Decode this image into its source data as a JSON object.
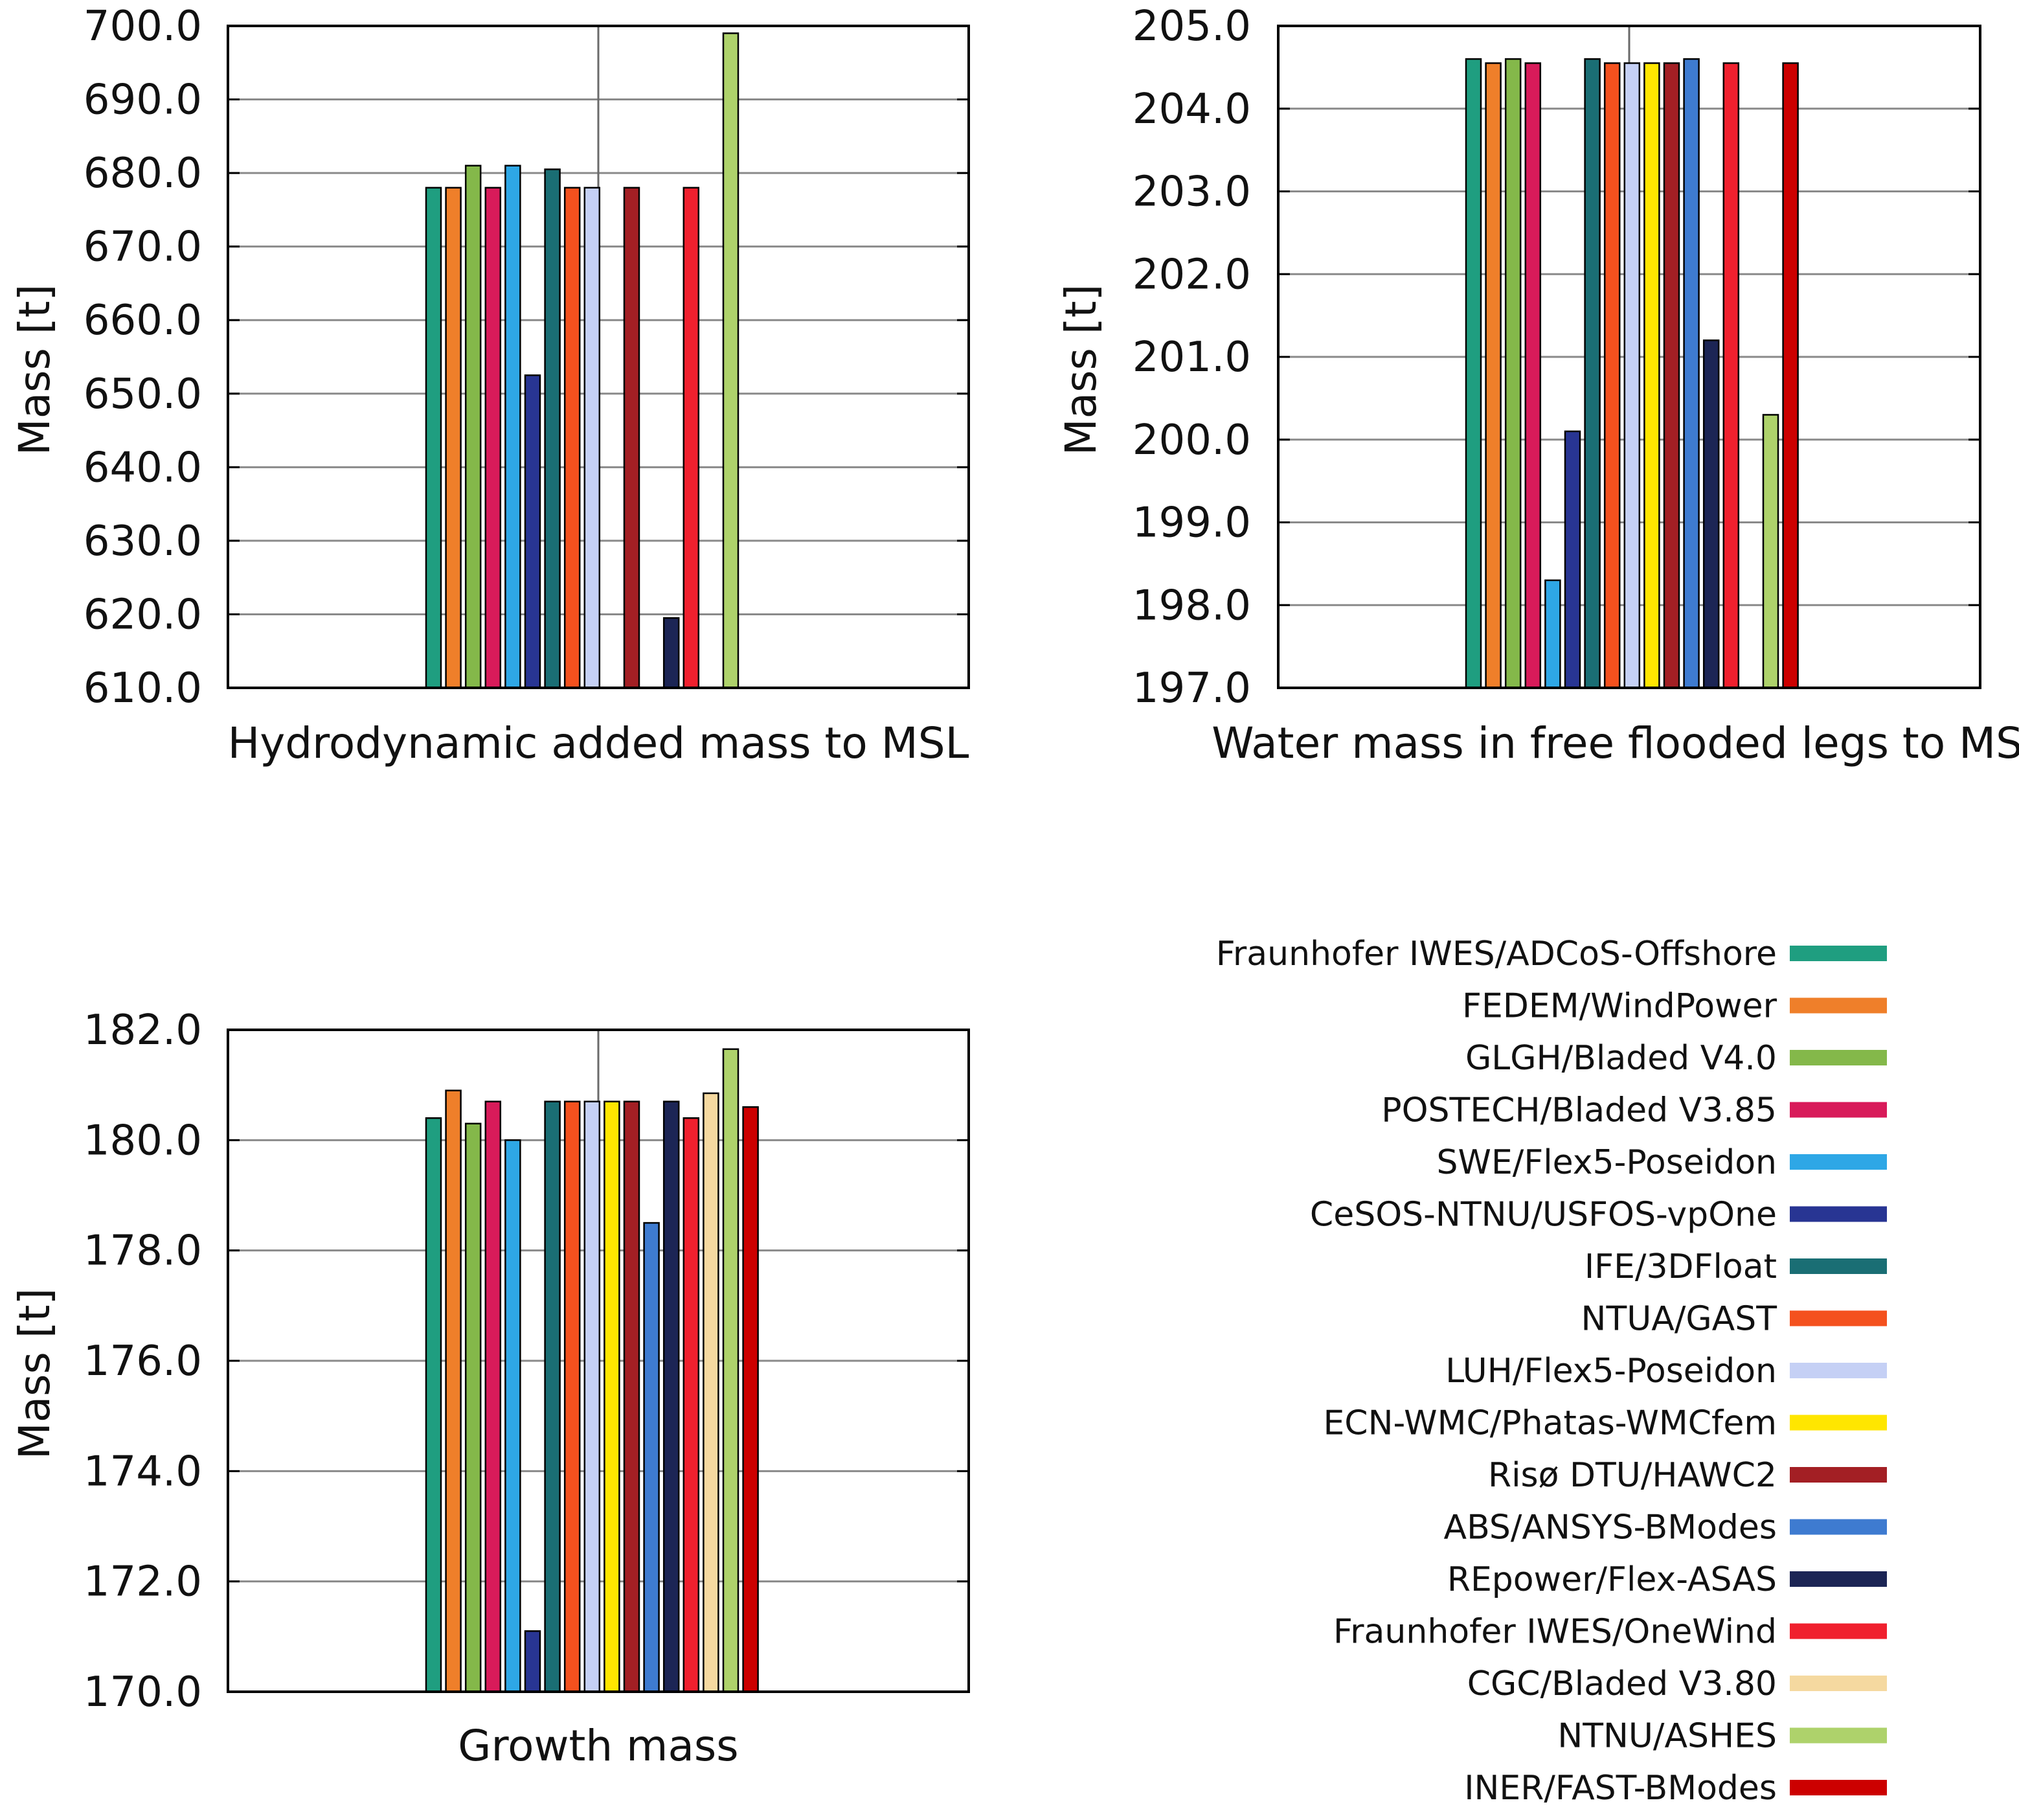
{
  "legend": {
    "entries": [
      {
        "name": "Fraunhofer IWES/ADCoS-Offshore",
        "color": "#1f9e80"
      },
      {
        "name": "FEDEM/WindPower",
        "color": "#ef7f2a"
      },
      {
        "name": "GLGH/Bladed V4.0",
        "color": "#84b84a"
      },
      {
        "name": "POSTECH/Bladed V3.85",
        "color": "#d81b5a"
      },
      {
        "name": "SWE/Flex5-Poseidon",
        "color": "#2ea7e6"
      },
      {
        "name": "CeSOS-NTNU/USFOS-vpOne",
        "color": "#283593"
      },
      {
        "name": "IFE/3DFloat",
        "color": "#1a6e74"
      },
      {
        "name": "NTUA/GAST",
        "color": "#f4511e"
      },
      {
        "name": "LUH/Flex5-Poseidon",
        "color": "#c5d0f5"
      },
      {
        "name": "ECN-WMC/Phatas-WMCfem",
        "color": "#ffe600"
      },
      {
        "name": "Risø DTU/HAWC2",
        "color": "#a31f24"
      },
      {
        "name": "ABS/ANSYS-BModes",
        "color": "#3e7bd0"
      },
      {
        "name": "REpower/Flex-ASAS",
        "color": "#1c2555"
      },
      {
        "name": "Fraunhofer IWES/OneWind",
        "color": "#f0202e"
      },
      {
        "name": "CGC/Bladed V3.80",
        "color": "#f5d9a0"
      },
      {
        "name": "NTNU/ASHES",
        "color": "#aed26b"
      },
      {
        "name": "INER/FAST-BModes",
        "color": "#cc0000"
      }
    ]
  },
  "chart_data": [
    {
      "type": "bar",
      "xlabel": "Hydrodynamic added mass to MSL",
      "ylabel": "Mass [t]",
      "ylim": [
        610,
        700
      ],
      "yticks": [
        "610.0",
        "620.0",
        "630.0",
        "640.0",
        "650.0",
        "660.0",
        "670.0",
        "680.0",
        "690.0",
        "700.0"
      ],
      "grid": true,
      "series": [
        {
          "name": "Fraunhofer IWES/ADCoS-Offshore",
          "value": 678.0
        },
        {
          "name": "FEDEM/WindPower",
          "value": 678.0
        },
        {
          "name": "GLGH/Bladed V4.0",
          "value": 681.0
        },
        {
          "name": "POSTECH/Bladed V3.85",
          "value": 678.0
        },
        {
          "name": "SWE/Flex5-Poseidon",
          "value": 681.0
        },
        {
          "name": "CeSOS-NTNU/USFOS-vpOne",
          "value": 652.5
        },
        {
          "name": "IFE/3DFloat",
          "value": 680.5
        },
        {
          "name": "NTUA/GAST",
          "value": 678.0
        },
        {
          "name": "LUH/Flex5-Poseidon",
          "value": 678.0
        },
        {
          "name": "ECN-WMC/Phatas-WMCfem",
          "value": null
        },
        {
          "name": "Risø DTU/HAWC2",
          "value": 678.0
        },
        {
          "name": "ABS/ANSYS-BModes",
          "value": null
        },
        {
          "name": "REpower/Flex-ASAS",
          "value": 619.5
        },
        {
          "name": "Fraunhofer IWES/OneWind",
          "value": 678.0
        },
        {
          "name": "CGC/Bladed V3.80",
          "value": null
        },
        {
          "name": "NTNU/ASHES",
          "value": 699.0
        },
        {
          "name": "INER/FAST-BModes",
          "value": null
        }
      ]
    },
    {
      "type": "bar",
      "xlabel": "Water mass in free flooded legs to MSL",
      "ylabel": "Mass [t]",
      "ylim": [
        197,
        205
      ],
      "yticks": [
        "197.0",
        "198.0",
        "199.0",
        "200.0",
        "201.0",
        "202.0",
        "203.0",
        "204.0",
        "205.0"
      ],
      "grid": true,
      "series": [
        {
          "name": "Fraunhofer IWES/ADCoS-Offshore",
          "value": 204.6
        },
        {
          "name": "FEDEM/WindPower",
          "value": 204.55
        },
        {
          "name": "GLGH/Bladed V4.0",
          "value": 204.6
        },
        {
          "name": "POSTECH/Bladed V3.85",
          "value": 204.55
        },
        {
          "name": "SWE/Flex5-Poseidon",
          "value": 198.3
        },
        {
          "name": "CeSOS-NTNU/USFOS-vpOne",
          "value": 200.1
        },
        {
          "name": "IFE/3DFloat",
          "value": 204.6
        },
        {
          "name": "NTUA/GAST",
          "value": 204.55
        },
        {
          "name": "LUH/Flex5-Poseidon",
          "value": 204.55
        },
        {
          "name": "ECN-WMC/Phatas-WMCfem",
          "value": 204.55
        },
        {
          "name": "Risø DTU/HAWC2",
          "value": 204.55
        },
        {
          "name": "ABS/ANSYS-BModes",
          "value": 204.6
        },
        {
          "name": "REpower/Flex-ASAS",
          "value": 201.2
        },
        {
          "name": "Fraunhofer IWES/OneWind",
          "value": 204.55
        },
        {
          "name": "CGC/Bladed V3.80",
          "value": null
        },
        {
          "name": "NTNU/ASHES",
          "value": 200.3
        },
        {
          "name": "INER/FAST-BModes",
          "value": 204.55
        }
      ]
    },
    {
      "type": "bar",
      "xlabel": "Growth mass",
      "ylabel": "Mass [t]",
      "ylim": [
        170,
        182
      ],
      "yticks": [
        "170.0",
        "172.0",
        "174.0",
        "176.0",
        "178.0",
        "180.0",
        "182.0"
      ],
      "grid": true,
      "series": [
        {
          "name": "Fraunhofer IWES/ADCoS-Offshore",
          "value": 180.4
        },
        {
          "name": "FEDEM/WindPower",
          "value": 180.9
        },
        {
          "name": "GLGH/Bladed V4.0",
          "value": 180.3
        },
        {
          "name": "POSTECH/Bladed V3.85",
          "value": 180.7
        },
        {
          "name": "SWE/Flex5-Poseidon",
          "value": 180.0
        },
        {
          "name": "CeSOS-NTNU/USFOS-vpOne",
          "value": 171.1
        },
        {
          "name": "IFE/3DFloat",
          "value": 180.7
        },
        {
          "name": "NTUA/GAST",
          "value": 180.7
        },
        {
          "name": "LUH/Flex5-Poseidon",
          "value": 180.7
        },
        {
          "name": "ECN-WMC/Phatas-WMCfem",
          "value": 180.7
        },
        {
          "name": "Risø DTU/HAWC2",
          "value": 180.7
        },
        {
          "name": "ABS/ANSYS-BModes",
          "value": 178.5
        },
        {
          "name": "REpower/Flex-ASAS",
          "value": 180.7
        },
        {
          "name": "Fraunhofer IWES/OneWind",
          "value": 180.4
        },
        {
          "name": "CGC/Bladed V3.80",
          "value": 180.85
        },
        {
          "name": "NTNU/ASHES",
          "value": 181.65
        },
        {
          "name": "INER/FAST-BModes",
          "value": 180.6
        }
      ]
    }
  ]
}
